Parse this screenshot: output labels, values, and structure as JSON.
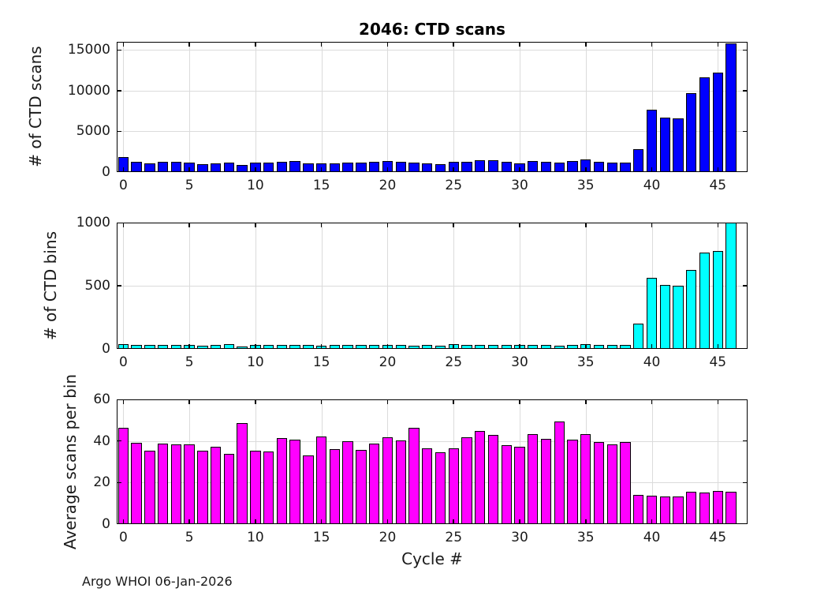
{
  "title": "2046: CTD scans",
  "footer": "Argo WHOI 06-Jan-2026",
  "x": {
    "label": "Cycle #",
    "ticks": [
      0,
      5,
      10,
      15,
      20,
      25,
      30,
      35,
      40,
      45
    ],
    "lim": [
      -0.5,
      47.25
    ]
  },
  "colors": {
    "scans_bar": "#0000ff",
    "bins_bar": "#00ffff",
    "avg_bar": "#ff00ff",
    "bar_edge": "#000000",
    "grid": "#dbdbdb",
    "axis": "#000000"
  },
  "chart_data": [
    {
      "type": "bar",
      "title": "2046: CTD scans",
      "ylabel": "# of CTD scans",
      "color": "#0000ff",
      "ylim": [
        0,
        16000
      ],
      "yticks": [
        0,
        5000,
        10000,
        15000
      ],
      "grid": true,
      "cycles": [
        0,
        1,
        2,
        3,
        4,
        5,
        6,
        7,
        8,
        9,
        10,
        11,
        12,
        13,
        14,
        15,
        16,
        17,
        18,
        19,
        20,
        21,
        22,
        23,
        24,
        25,
        26,
        27,
        28,
        29,
        30,
        31,
        32,
        33,
        34,
        35,
        36,
        37,
        38,
        39,
        40,
        41,
        42,
        43,
        44,
        45,
        46
      ],
      "values": [
        1810,
        1300,
        1070,
        1230,
        1230,
        1130,
        940,
        1100,
        1200,
        910,
        1150,
        1130,
        1300,
        1360,
        1100,
        1050,
        1100,
        1150,
        1200,
        1300,
        1350,
        1300,
        1170,
        1040,
        940,
        1300,
        1230,
        1490,
        1430,
        1230,
        1070,
        1360,
        1230,
        1130,
        1360,
        1520,
        1260,
        1200,
        1200,
        2800,
        7700,
        6700,
        6600,
        9700,
        11600,
        12200,
        15800
      ]
    },
    {
      "type": "bar",
      "ylabel": "# of CTD bins",
      "color": "#00ffff",
      "ylim": [
        0,
        1000
      ],
      "yticks": [
        0,
        500,
        1000
      ],
      "grid": true,
      "cycles": [
        0,
        1,
        2,
        3,
        4,
        5,
        6,
        7,
        8,
        9,
        10,
        11,
        12,
        13,
        14,
        15,
        16,
        17,
        18,
        19,
        20,
        21,
        22,
        23,
        24,
        25,
        26,
        27,
        28,
        29,
        30,
        31,
        32,
        33,
        34,
        35,
        36,
        37,
        38,
        39,
        40,
        41,
        42,
        43,
        44,
        45,
        46
      ],
      "values": [
        39,
        33,
        30,
        32,
        32,
        30,
        26,
        29,
        35,
        19,
        32,
        32,
        31,
        34,
        33,
        25,
        30,
        29,
        34,
        34,
        32,
        32,
        25,
        29,
        27,
        36,
        29,
        33,
        33,
        33,
        29,
        31,
        30,
        23,
        34,
        35,
        32,
        31,
        30,
        200,
        560,
        505,
        500,
        625,
        760,
        772,
        1010
      ]
    },
    {
      "type": "bar",
      "ylabel": "Average scans per bin",
      "xlabel": "Cycle #",
      "color": "#ff00ff",
      "ylim": [
        0,
        60
      ],
      "yticks": [
        0,
        20,
        40,
        60
      ],
      "grid": true,
      "cycles": [
        0,
        1,
        2,
        3,
        4,
        5,
        6,
        7,
        8,
        9,
        10,
        11,
        12,
        13,
        14,
        15,
        16,
        17,
        18,
        19,
        20,
        21,
        22,
        23,
        24,
        25,
        26,
        27,
        28,
        29,
        30,
        31,
        32,
        33,
        34,
        35,
        36,
        37,
        38,
        39,
        40,
        41,
        42,
        43,
        44,
        45,
        46
      ],
      "values": [
        46.4,
        39.3,
        35.2,
        38.6,
        38.3,
        38.2,
        35.5,
        37.3,
        33.9,
        48.8,
        35.5,
        35.1,
        41.5,
        40.5,
        33.2,
        42.0,
        36.2,
        40.0,
        35.8,
        38.6,
        41.9,
        40.1,
        46.3,
        36.3,
        34.5,
        36.6,
        41.8,
        44.7,
        43.0,
        37.8,
        37.2,
        43.4,
        40.9,
        49.2,
        40.5,
        43.2,
        39.5,
        38.5,
        39.6,
        14.0,
        13.8,
        13.3,
        13.2,
        15.5,
        15.2,
        15.8,
        15.6
      ]
    }
  ]
}
